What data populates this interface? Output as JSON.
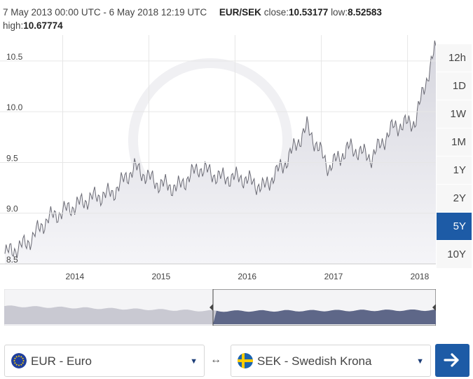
{
  "header": {
    "range_text": "7 May 2013 00:00 UTC - 6 May 2018 12:19 UTC",
    "pair": "EUR/SEK",
    "close_label": "close:",
    "close_value": "10.53177",
    "low_label": "low:",
    "low_value": "8.52583",
    "high_label": "high:",
    "high_value": "10.67774"
  },
  "range_buttons": [
    {
      "label": "12h",
      "active": false
    },
    {
      "label": "1D",
      "active": false
    },
    {
      "label": "1W",
      "active": false
    },
    {
      "label": "1M",
      "active": false
    },
    {
      "label": "1Y",
      "active": false
    },
    {
      "label": "2Y",
      "active": false
    },
    {
      "label": "5Y",
      "active": true
    },
    {
      "label": "10Y",
      "active": false
    }
  ],
  "from_currency": {
    "label": "EUR - Euro",
    "icon": "eu-flag-icon"
  },
  "to_currency": {
    "label": "SEK - Swedish Krona",
    "icon": "sweden-flag-icon"
  },
  "swap_icon": "↔",
  "colors": {
    "accent": "#1d5ba6",
    "line": "#6a6a74",
    "area": "#dcdce2",
    "navigator_active": "#5e6788"
  },
  "chart_data": {
    "type": "area",
    "title": "",
    "series": [
      {
        "x": [
          "2013-05",
          "2013-08",
          "2013-11",
          "2014-02",
          "2014-05",
          "2014-08",
          "2014-11",
          "2015-02",
          "2015-05",
          "2015-08",
          "2015-11",
          "2016-02",
          "2016-05",
          "2016-08",
          "2016-11",
          "2017-02",
          "2017-05",
          "2017-08",
          "2017-11",
          "2018-02",
          "2018-05"
        ],
        "values": [
          8.6,
          8.7,
          8.95,
          9.05,
          9.15,
          9.2,
          9.45,
          9.3,
          9.25,
          9.45,
          9.35,
          9.35,
          9.25,
          9.5,
          9.85,
          9.45,
          9.65,
          9.55,
          9.85,
          9.9,
          10.65
        ]
      }
    ],
    "ylim": [
      8.5,
      10.7
    ],
    "y_ticks": [
      "8.5",
      "9.0",
      "9.5",
      "10.0",
      "10.5"
    ],
    "x_ticks": [
      "2014",
      "2015",
      "2016",
      "2017",
      "2018"
    ]
  }
}
